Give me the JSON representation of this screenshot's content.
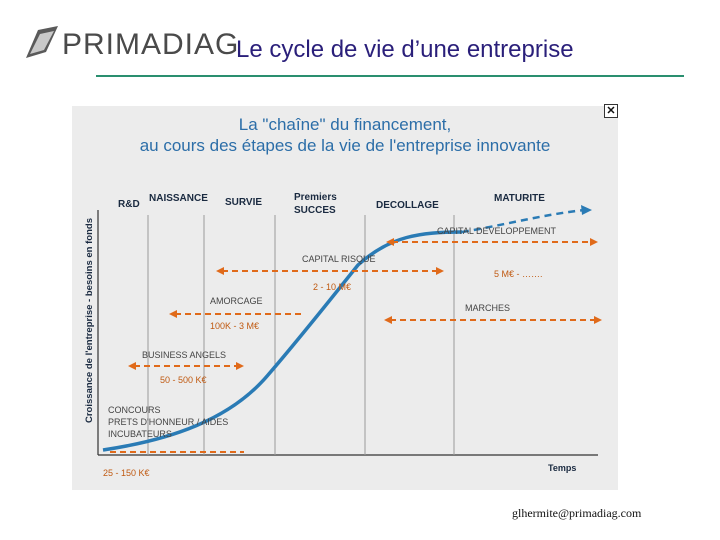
{
  "header": {
    "logo_text": "PRIMADIAG",
    "title": "Le cycle de vie d’une entreprise"
  },
  "figure": {
    "title_line1": "La \"chaîne\" du financement,",
    "title_line2": "au cours des étapes de la vie de l'entreprise innovante",
    "y_axis_label": "Croissance de l'entreprise - besoins en fonds",
    "x_axis_label": "Temps",
    "stages": [
      "R&D",
      "NAISSANCE",
      "SURVIE",
      "Premiers",
      "SUCCES",
      "DECOLLAGE",
      "MATURITE"
    ],
    "financing": [
      {
        "name": "CAPITAL DEVELOPPEMENT",
        "amount": "5 M€ - ……."
      },
      {
        "name": "CAPITAL RISQUE",
        "amount": "2 - 10 M€"
      },
      {
        "name": "AMORCAGE",
        "amount": "100K - 3 M€"
      },
      {
        "name": "MARCHES",
        "amount": ""
      },
      {
        "name": "BUSINESS ANGELS",
        "amount": "50 - 500 K€"
      },
      {
        "name": "CONCOURS",
        "amount": ""
      },
      {
        "name": "PRETS D'HONNEUR / AIDES",
        "amount": ""
      },
      {
        "name": "INCUBATEURS",
        "amount": "25 - 150 K€"
      }
    ],
    "colors": {
      "arrows": "#e06a1a",
      "curve": "#2a7bb5",
      "labels": "#c05a12",
      "text": "#1a2a40"
    }
  },
  "footer": {
    "email": "glhermite@primadiag.com"
  }
}
